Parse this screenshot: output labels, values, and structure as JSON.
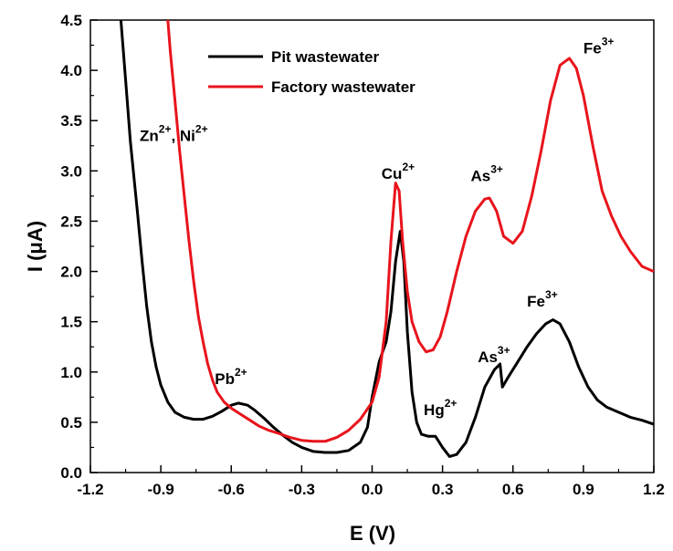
{
  "chart_data": {
    "type": "line",
    "xlabel": "E (V)",
    "ylabel_main": "I (",
    "ylabel_unit": "μA",
    "ylabel_close": ")",
    "xlim": [
      -1.2,
      1.2
    ],
    "ylim": [
      0.0,
      4.5
    ],
    "x_ticks": [
      "-1.2",
      "-0.9",
      "-0.6",
      "-0.3",
      "0.0",
      "0.3",
      "0.6",
      "0.9",
      "1.2"
    ],
    "y_ticks": [
      "0.0",
      "0.5",
      "1.0",
      "1.5",
      "2.0",
      "2.5",
      "3.0",
      "3.5",
      "4.0",
      "4.5"
    ],
    "legend_position": "top-center",
    "series": [
      {
        "name": "Pit wastewater",
        "color": "#000000",
        "points": [
          [
            -1.07,
            4.5
          ],
          [
            -1.05,
            3.9
          ],
          [
            -1.03,
            3.3
          ],
          [
            -1.0,
            2.6
          ],
          [
            -0.98,
            2.1
          ],
          [
            -0.96,
            1.65
          ],
          [
            -0.94,
            1.3
          ],
          [
            -0.92,
            1.05
          ],
          [
            -0.9,
            0.87
          ],
          [
            -0.87,
            0.7
          ],
          [
            -0.84,
            0.6
          ],
          [
            -0.8,
            0.55
          ],
          [
            -0.76,
            0.53
          ],
          [
            -0.72,
            0.53
          ],
          [
            -0.68,
            0.56
          ],
          [
            -0.64,
            0.61
          ],
          [
            -0.6,
            0.67
          ],
          [
            -0.57,
            0.69
          ],
          [
            -0.53,
            0.67
          ],
          [
            -0.5,
            0.62
          ],
          [
            -0.46,
            0.54
          ],
          [
            -0.42,
            0.45
          ],
          [
            -0.38,
            0.37
          ],
          [
            -0.34,
            0.3
          ],
          [
            -0.3,
            0.25
          ],
          [
            -0.25,
            0.21
          ],
          [
            -0.2,
            0.2
          ],
          [
            -0.15,
            0.2
          ],
          [
            -0.1,
            0.22
          ],
          [
            -0.05,
            0.3
          ],
          [
            -0.02,
            0.45
          ],
          [
            0.0,
            0.75
          ],
          [
            0.03,
            1.1
          ],
          [
            0.06,
            1.3
          ],
          [
            0.08,
            1.6
          ],
          [
            0.1,
            2.1
          ],
          [
            0.12,
            2.4
          ],
          [
            0.135,
            2.1
          ],
          [
            0.15,
            1.4
          ],
          [
            0.17,
            0.8
          ],
          [
            0.19,
            0.5
          ],
          [
            0.21,
            0.38
          ],
          [
            0.24,
            0.36
          ],
          [
            0.27,
            0.36
          ],
          [
            0.3,
            0.25
          ],
          [
            0.33,
            0.16
          ],
          [
            0.36,
            0.18
          ],
          [
            0.4,
            0.3
          ],
          [
            0.44,
            0.55
          ],
          [
            0.48,
            0.85
          ],
          [
            0.52,
            1.02
          ],
          [
            0.545,
            1.08
          ],
          [
            0.555,
            0.85
          ],
          [
            0.58,
            0.95
          ],
          [
            0.62,
            1.1
          ],
          [
            0.66,
            1.25
          ],
          [
            0.7,
            1.38
          ],
          [
            0.74,
            1.48
          ],
          [
            0.77,
            1.52
          ],
          [
            0.8,
            1.48
          ],
          [
            0.84,
            1.3
          ],
          [
            0.88,
            1.05
          ],
          [
            0.92,
            0.85
          ],
          [
            0.96,
            0.72
          ],
          [
            1.0,
            0.65
          ],
          [
            1.05,
            0.6
          ],
          [
            1.1,
            0.55
          ],
          [
            1.15,
            0.52
          ],
          [
            1.2,
            0.48
          ]
        ]
      },
      {
        "name": "Factory wastewater",
        "color": "#e8141c",
        "points": [
          [
            -0.87,
            4.5
          ],
          [
            -0.86,
            4.2
          ],
          [
            -0.84,
            3.7
          ],
          [
            -0.82,
            3.2
          ],
          [
            -0.8,
            2.75
          ],
          [
            -0.78,
            2.3
          ],
          [
            -0.76,
            1.9
          ],
          [
            -0.74,
            1.55
          ],
          [
            -0.72,
            1.3
          ],
          [
            -0.7,
            1.08
          ],
          [
            -0.68,
            0.92
          ],
          [
            -0.66,
            0.8
          ],
          [
            -0.63,
            0.7
          ],
          [
            -0.6,
            0.64
          ],
          [
            -0.56,
            0.58
          ],
          [
            -0.52,
            0.52
          ],
          [
            -0.48,
            0.46
          ],
          [
            -0.44,
            0.42
          ],
          [
            -0.4,
            0.39
          ],
          [
            -0.35,
            0.35
          ],
          [
            -0.3,
            0.32
          ],
          [
            -0.25,
            0.31
          ],
          [
            -0.2,
            0.31
          ],
          [
            -0.15,
            0.35
          ],
          [
            -0.1,
            0.42
          ],
          [
            -0.05,
            0.53
          ],
          [
            0.0,
            0.7
          ],
          [
            0.03,
            0.95
          ],
          [
            0.06,
            1.5
          ],
          [
            0.08,
            2.3
          ],
          [
            0.1,
            2.88
          ],
          [
            0.115,
            2.8
          ],
          [
            0.13,
            2.3
          ],
          [
            0.15,
            1.8
          ],
          [
            0.17,
            1.5
          ],
          [
            0.2,
            1.3
          ],
          [
            0.23,
            1.2
          ],
          [
            0.26,
            1.22
          ],
          [
            0.29,
            1.35
          ],
          [
            0.32,
            1.6
          ],
          [
            0.36,
            2.0
          ],
          [
            0.4,
            2.35
          ],
          [
            0.44,
            2.6
          ],
          [
            0.48,
            2.72
          ],
          [
            0.5,
            2.73
          ],
          [
            0.53,
            2.6
          ],
          [
            0.56,
            2.35
          ],
          [
            0.6,
            2.28
          ],
          [
            0.64,
            2.4
          ],
          [
            0.68,
            2.75
          ],
          [
            0.72,
            3.2
          ],
          [
            0.76,
            3.7
          ],
          [
            0.8,
            4.05
          ],
          [
            0.84,
            4.12
          ],
          [
            0.87,
            4.02
          ],
          [
            0.9,
            3.75
          ],
          [
            0.94,
            3.25
          ],
          [
            0.98,
            2.8
          ],
          [
            1.02,
            2.55
          ],
          [
            1.06,
            2.35
          ],
          [
            1.1,
            2.2
          ],
          [
            1.15,
            2.05
          ],
          [
            1.2,
            2.0
          ]
        ]
      }
    ],
    "annotations": [
      {
        "base": "Zn",
        "sup": "2+",
        "mid": ", Ni",
        "sup2": "2+",
        "x": -0.99,
        "y": 3.3
      },
      {
        "base": "Cu",
        "sup": "2+",
        "x": 0.04,
        "y": 2.92
      },
      {
        "base": "As",
        "sup": "3+",
        "x": 0.42,
        "y": 2.9
      },
      {
        "base": "Fe",
        "sup": "3+",
        "x": 0.9,
        "y": 4.17
      },
      {
        "base": "Pb",
        "sup": "2+",
        "x": -0.67,
        "y": 0.88
      },
      {
        "base": "Hg",
        "sup": "2+",
        "x": 0.22,
        "y": 0.57
      },
      {
        "base": "As",
        "sup": "3+",
        "x": 0.45,
        "y": 1.1
      },
      {
        "base": "Fe",
        "sup": "3+",
        "x": 0.66,
        "y": 1.65
      }
    ]
  }
}
